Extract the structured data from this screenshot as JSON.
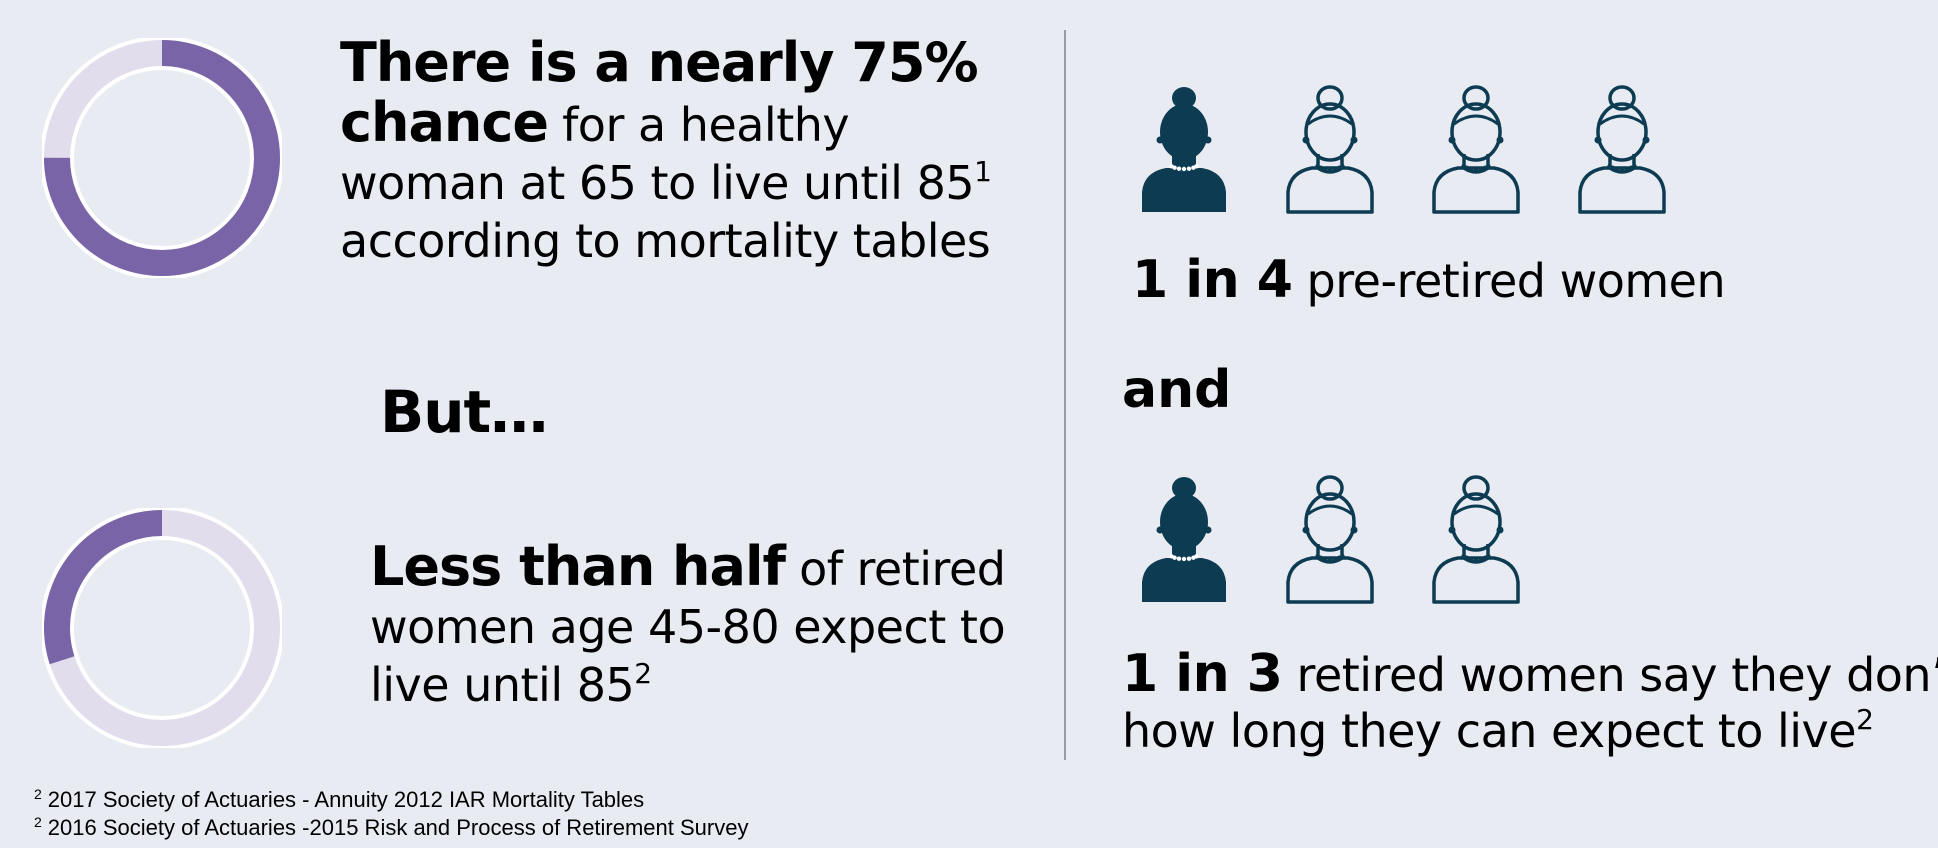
{
  "stat1": {
    "percent": 75,
    "bold": "There is a nearly 75% chance",
    "rest_line1": " for a healthy",
    "rest_line2": "woman at 65 to live until 85",
    "ref": "1",
    "rest_line3": "according to mortality tables"
  },
  "but_label": "But…",
  "stat2": {
    "percent": 30,
    "bold": "Less than half",
    "rest_line1": " of retired",
    "rest_line2": "women age 45-80 expect to",
    "rest_line3": "live until 85",
    "ref": "2"
  },
  "right": {
    "row1": {
      "filled": 1,
      "total": 4
    },
    "ratio1_bold": "1 in 4",
    "ratio1_rest": " pre-retired women",
    "and_label": "and",
    "row2": {
      "filled": 1,
      "total": 3
    },
    "ratio2_bold": "1 in 3",
    "ratio2_rest_line1": " retired women say they don’t k",
    "ratio2_rest_line2": "how long they can expect to live",
    "ratio2_ref": "2"
  },
  "footnotes": [
    {
      "ref": "2",
      "text": "2017 Society of Actuaries - Annuity 2012 IAR Mortality Tables"
    },
    {
      "ref": "2",
      "text": "2016 Society of Actuaries -2015 Risk and Process of Retirement Survey"
    }
  ],
  "colors": {
    "accent": "#7a64a8",
    "track": "#e2ddec",
    "icon": "#0d3b52"
  }
}
